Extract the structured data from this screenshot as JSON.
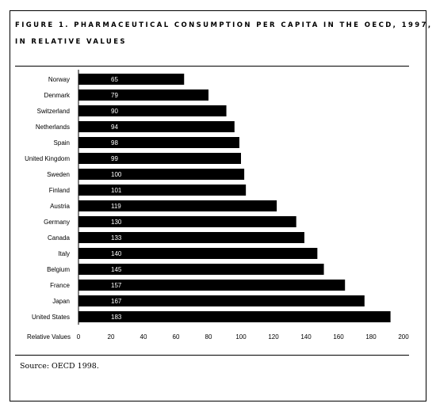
{
  "figure": {
    "title_line1": "FIGURE 1. PHARMACEUTICAL CONSUMPTION PER CAPITA IN THE OECD, 1997,",
    "title_line2": "IN RELATIVE VALUES",
    "source": "Source: OECD 1998."
  },
  "chart_data": {
    "type": "bar",
    "orientation": "horizontal",
    "categories": [
      "Norway",
      "Denmark",
      "Switzerland",
      "Netherlands",
      "Spain",
      "United Kingdom",
      "Sweden",
      "Finland",
      "Austria",
      "Germany",
      "Canada",
      "Italy",
      "Belgium",
      "France",
      "Japan",
      "United States"
    ],
    "values": [
      65,
      79,
      90,
      94,
      98,
      99,
      100,
      101,
      119,
      130,
      133,
      140,
      145,
      157,
      167,
      183
    ],
    "bar_extent": [
      65,
      80,
      91,
      96,
      99,
      100,
      102,
      103,
      122,
      134,
      139,
      147,
      151,
      164,
      176,
      192
    ],
    "xlabel": "Relative Values",
    "xlim": [
      0,
      200
    ],
    "xticks": [
      "0",
      "20",
      "40",
      "60",
      "80",
      "100",
      "120",
      "140",
      "160",
      "180",
      "200"
    ],
    "bar_color": "#000000",
    "label_color": "#ffffff",
    "grid": false
  }
}
